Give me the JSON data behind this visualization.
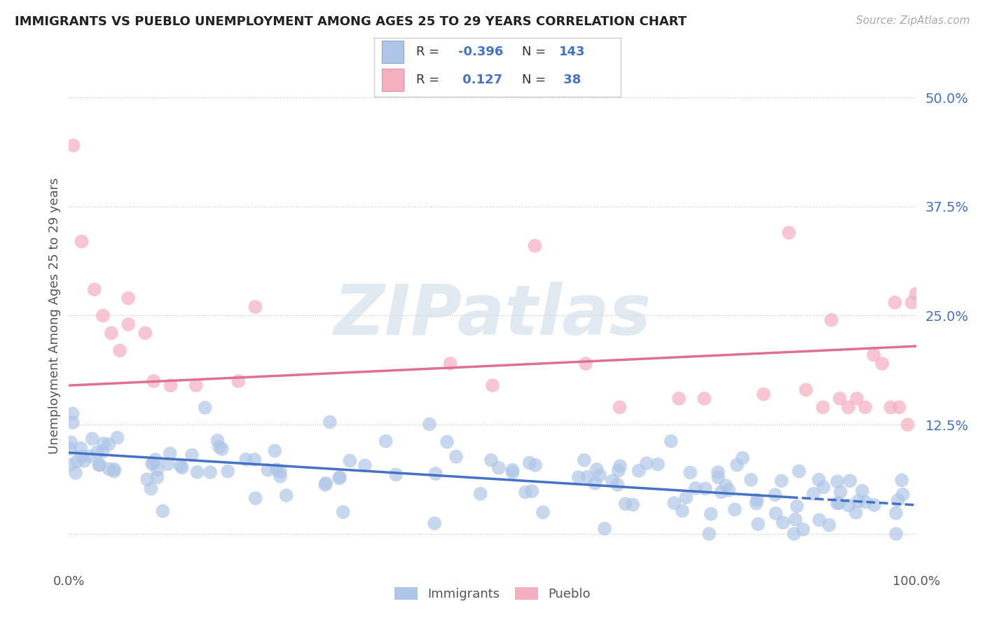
{
  "title": "IMMIGRANTS VS PUEBLO UNEMPLOYMENT AMONG AGES 25 TO 29 YEARS CORRELATION CHART",
  "source": "Source: ZipAtlas.com",
  "ylabel": "Unemployment Among Ages 25 to 29 years",
  "xlim": [
    0,
    1
  ],
  "ylim": [
    -0.04,
    0.54
  ],
  "ytick_vals": [
    0.0,
    0.125,
    0.25,
    0.375,
    0.5
  ],
  "ytick_labels": [
    "",
    "12.5%",
    "25.0%",
    "37.5%",
    "50.0%"
  ],
  "xtick_vals": [
    0.0,
    0.1,
    0.2,
    0.3,
    0.4,
    0.5,
    0.6,
    0.7,
    0.8,
    0.9,
    1.0
  ],
  "xtick_labels": [
    "0.0%",
    "",
    "",
    "",
    "",
    "",
    "",
    "",
    "",
    "",
    "100.0%"
  ],
  "background_color": "#ffffff",
  "watermark_text": "ZIPatlas",
  "legend_r_immigrants": "-0.396",
  "legend_n_immigrants": "143",
  "legend_r_pueblo": "0.127",
  "legend_n_pueblo": "38",
  "immigrants_color": "#aec6e8",
  "pueblo_color": "#f4afc0",
  "immigrants_line_color": "#4472c4",
  "pueblo_line_color": "#e07090",
  "immigrants_line_x": [
    0.0,
    1.0
  ],
  "immigrants_line_y": [
    0.093,
    0.033
  ],
  "pueblo_line_x": [
    0.0,
    1.0
  ],
  "pueblo_line_y": [
    0.17,
    0.215
  ],
  "imm_seed": 42,
  "pub_seed": 99
}
